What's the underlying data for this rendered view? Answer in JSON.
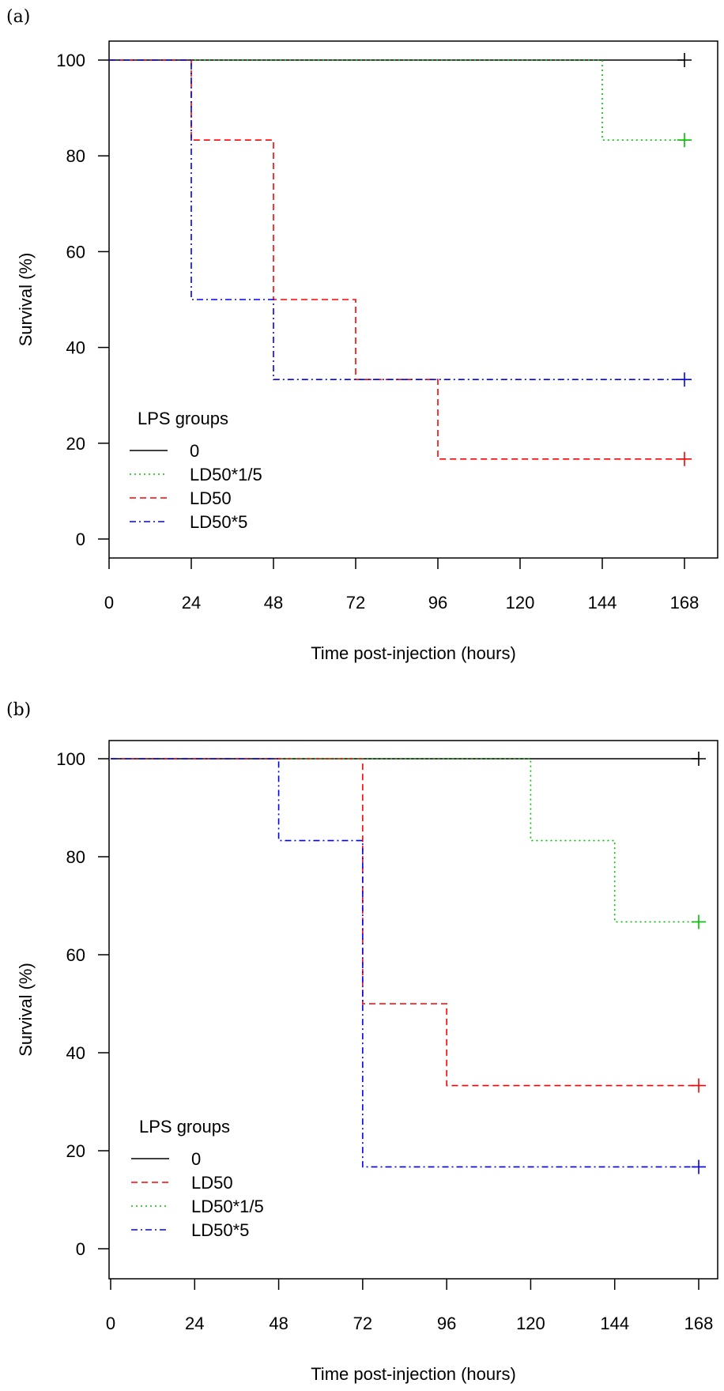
{
  "chart_data": [
    {
      "type": "line",
      "panel_label": "(a)",
      "xlabel": "Time post-injection (hours)",
      "ylabel": "Survival (%)",
      "xlim": [
        0,
        168
      ],
      "ylim": [
        0,
        100
      ],
      "xticks": [
        0,
        24,
        48,
        72,
        96,
        120,
        144,
        168
      ],
      "yticks": [
        0,
        20,
        40,
        60,
        80,
        100
      ],
      "grid": false,
      "legend": {
        "title": "LPS groups",
        "placement": "bottom-left",
        "order": [
          "0",
          "LD50*1/5",
          "LD50",
          "LD50*5"
        ]
      },
      "series": [
        {
          "name": "0",
          "color": "#000000",
          "style": "solid",
          "steps": [
            [
              0,
              100
            ],
            [
              168,
              100
            ]
          ],
          "censor": [
            168,
            100
          ]
        },
        {
          "name": "LD50*1/5",
          "color": "#00c000",
          "style": "dotted",
          "steps": [
            [
              0,
              100
            ],
            [
              144,
              83.3
            ],
            [
              168,
              83.3
            ]
          ],
          "censor": [
            168,
            83.3
          ]
        },
        {
          "name": "LD50",
          "color": "#ff0000",
          "style": "dashed",
          "steps": [
            [
              0,
              100
            ],
            [
              24,
              83.3
            ],
            [
              48,
              50
            ],
            [
              72,
              33.3
            ],
            [
              96,
              16.7
            ],
            [
              168,
              16.7
            ]
          ],
          "censor": [
            168,
            16.7
          ]
        },
        {
          "name": "LD50*5",
          "color": "#0000ff",
          "style": "dashdot",
          "steps": [
            [
              0,
              100
            ],
            [
              24,
              50
            ],
            [
              48,
              33.3
            ],
            [
              168,
              33.3
            ]
          ],
          "censor": [
            168,
            33.3
          ]
        }
      ]
    },
    {
      "type": "line",
      "panel_label": "(b)",
      "xlabel": "Time post-injection (hours)",
      "ylabel": "Survival (%)",
      "xlim": [
        0,
        168
      ],
      "ylim": [
        0,
        100
      ],
      "xticks": [
        0,
        24,
        48,
        72,
        96,
        120,
        144,
        168
      ],
      "yticks": [
        0,
        20,
        40,
        60,
        80,
        100
      ],
      "grid": false,
      "legend": {
        "title": "LPS groups",
        "placement": "bottom-left",
        "order": [
          "0",
          "LD50",
          "LD50*1/5",
          "LD50*5"
        ]
      },
      "series": [
        {
          "name": "0",
          "color": "#000000",
          "style": "solid",
          "steps": [
            [
              0,
              100
            ],
            [
              168,
              100
            ]
          ],
          "censor": [
            168,
            100
          ]
        },
        {
          "name": "LD50",
          "color": "#ff0000",
          "style": "dashed",
          "steps": [
            [
              0,
              100
            ],
            [
              72,
              50
            ],
            [
              96,
              33.3
            ],
            [
              168,
              33.3
            ]
          ],
          "censor": [
            168,
            33.3
          ]
        },
        {
          "name": "LD50*1/5",
          "color": "#00c000",
          "style": "dotted",
          "steps": [
            [
              0,
              100
            ],
            [
              120,
              83.3
            ],
            [
              144,
              66.7
            ],
            [
              168,
              66.7
            ]
          ],
          "censor": [
            168,
            66.7
          ]
        },
        {
          "name": "LD50*5",
          "color": "#0000ff",
          "style": "dashdot",
          "steps": [
            [
              0,
              100
            ],
            [
              48,
              83.3
            ],
            [
              72,
              16.7
            ],
            [
              168,
              16.7
            ]
          ],
          "censor": [
            168,
            16.7
          ]
        }
      ]
    }
  ]
}
